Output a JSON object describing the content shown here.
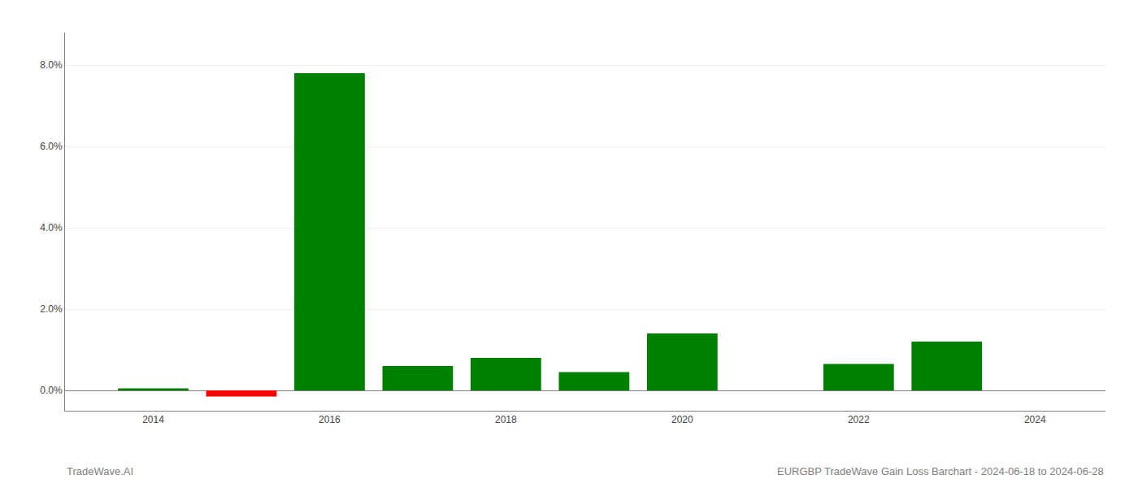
{
  "chart_data": {
    "type": "bar",
    "title": "EURGBP TradeWave Gain Loss Barchart - 2024-06-18 to 2024-06-28",
    "annotations": [
      "TradeWave.AI"
    ],
    "x": [
      2014,
      2015,
      2016,
      2017,
      2018,
      2019,
      2020,
      2021,
      2022,
      2023
    ],
    "values": [
      0.0005,
      -0.0015,
      0.078,
      0.006,
      0.008,
      0.0045,
      0.014,
      0.0,
      0.0065,
      0.012
    ],
    "colors": [
      "#008000",
      "#ff0000",
      "#008000",
      "#008000",
      "#008000",
      "#008000",
      "#008000",
      "#008000",
      "#008000",
      "#008000"
    ],
    "xlim": [
      2013.0,
      2024.8
    ],
    "xticks": [
      2014,
      2016,
      2018,
      2020,
      2022,
      2024
    ],
    "ylim": [
      -0.005,
      0.088
    ],
    "yticks": [
      {
        "value": 0.0,
        "label": "0.0%"
      },
      {
        "value": 0.02,
        "label": "2.0%"
      },
      {
        "value": 0.04,
        "label": "4.0%"
      },
      {
        "value": 0.06,
        "label": "6.0%"
      },
      {
        "value": 0.08,
        "label": "8.0%"
      }
    ],
    "grid": "y"
  }
}
